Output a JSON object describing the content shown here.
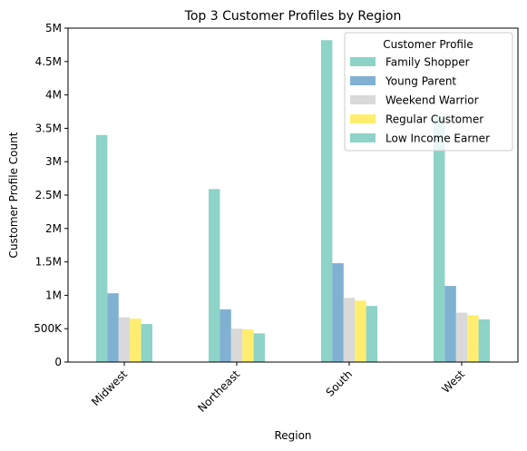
{
  "chart_data": {
    "type": "bar",
    "title": "Top 3 Customer Profiles by Region",
    "xlabel": "Region",
    "ylabel": "Customer Profile Count",
    "categories": [
      "Midwest",
      "Northeast",
      "South",
      "West"
    ],
    "ylim": [
      0,
      5000000
    ],
    "yticks": [
      0,
      500000,
      1000000,
      1500000,
      2000000,
      2500000,
      3000000,
      3500000,
      4000000,
      4500000,
      5000000
    ],
    "ytick_labels": [
      "0",
      "500K",
      "1M",
      "1.5M",
      "2M",
      "2.5M",
      "3M",
      "3.5M",
      "4M",
      "4.5M",
      "5M"
    ],
    "grid": false,
    "legend": {
      "title": "Customer Profile",
      "placement": "top-right"
    },
    "series": [
      {
        "name": "Family Shopper",
        "color": "#8dd3c7",
        "values": [
          3400000,
          2590000,
          4820000,
          3680000
        ]
      },
      {
        "name": "Young Parent",
        "color": "#80b1d3",
        "values": [
          1030000,
          790000,
          1480000,
          1140000
        ]
      },
      {
        "name": "Weekend Warrior",
        "color": "#d9d9d9",
        "values": [
          670000,
          500000,
          960000,
          740000
        ]
      },
      {
        "name": "Regular Customer",
        "color": "#ffed6f",
        "values": [
          650000,
          490000,
          920000,
          700000
        ]
      },
      {
        "name": "Low Income Earner",
        "color": "#8dd3c7",
        "values": [
          570000,
          430000,
          840000,
          640000
        ]
      }
    ]
  }
}
